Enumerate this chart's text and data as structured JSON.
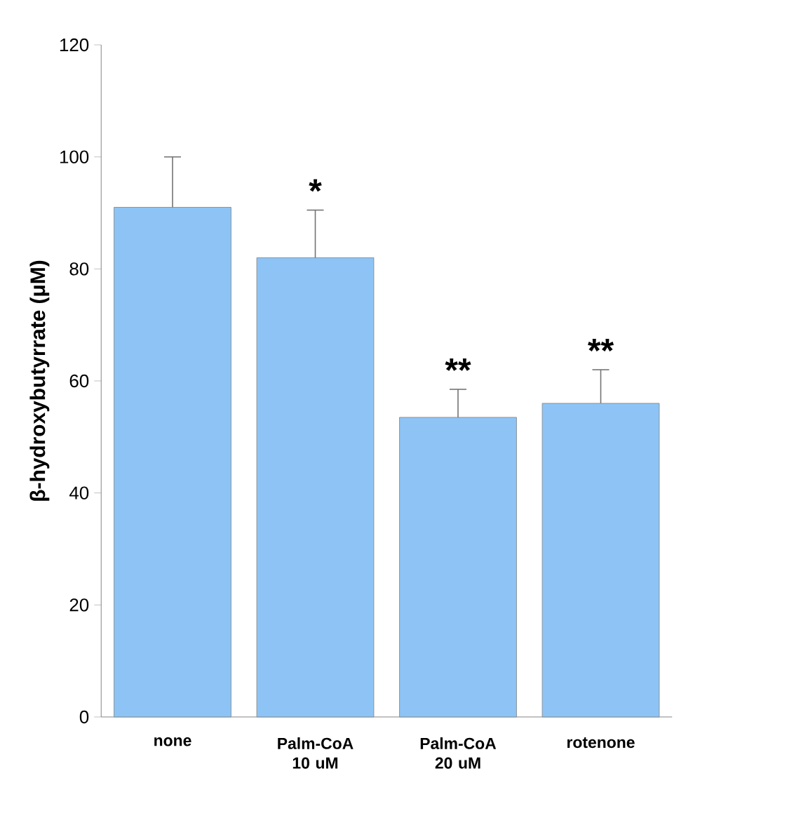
{
  "chart_data": {
    "type": "bar",
    "ylabel": "β-hydroxybutyrrate (μM)",
    "categories": [
      "none",
      "Palm-CoA 10 uM",
      "Palm-CoA 20 uM",
      "rotenone"
    ],
    "values": [
      91,
      82,
      53.5,
      56
    ],
    "errors": [
      9,
      8.5,
      5,
      6
    ],
    "color": "#8ec4f5",
    "ylim": [
      0,
      120
    ],
    "yticks": [
      0,
      20,
      40,
      60,
      80,
      100,
      120
    ],
    "annotations": [
      "*",
      "**",
      "**"
    ]
  }
}
